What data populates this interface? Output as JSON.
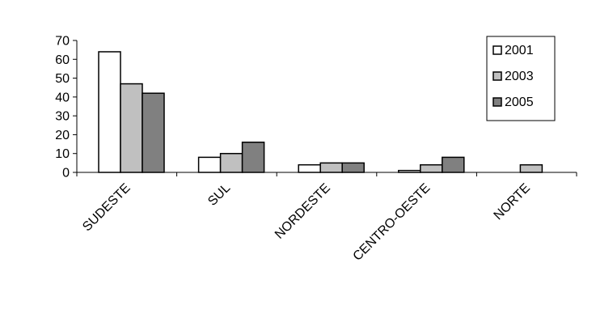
{
  "chart_data": {
    "type": "bar",
    "title": "",
    "xlabel": "",
    "ylabel": "",
    "categories": [
      "SUDESTE",
      "SUL",
      "NORDESTE",
      "CENTRO-OESTE",
      "NORTE"
    ],
    "series": [
      {
        "name": "2001",
        "color": "#ffffff",
        "values": [
          64,
          8,
          4,
          1,
          0
        ]
      },
      {
        "name": "2003",
        "color": "#c0c0c0",
        "values": [
          47,
          10,
          5,
          4,
          4
        ]
      },
      {
        "name": "2005",
        "color": "#808080",
        "values": [
          42,
          16,
          5,
          8,
          0
        ]
      }
    ],
    "ylim": [
      0,
      70
    ],
    "yticks": [
      "0",
      "10",
      "20",
      "30",
      "40",
      "50",
      "60",
      "70"
    ],
    "grid": false,
    "legend_position": "top-right"
  }
}
